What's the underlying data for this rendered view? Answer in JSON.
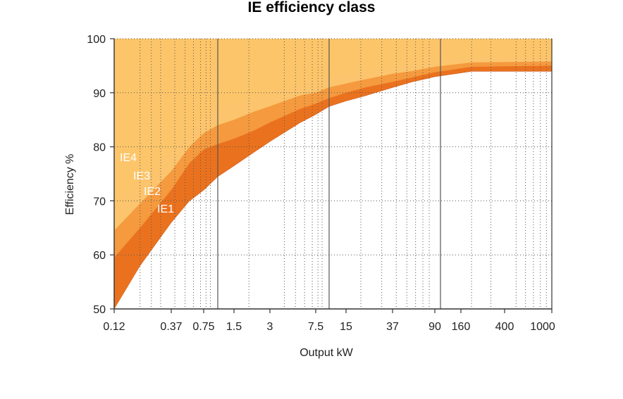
{
  "chart_data": {
    "type": "area",
    "title": "IE efficiency class",
    "xlabel": "Output kW",
    "ylabel": "Efficiency %",
    "x_scale": "log",
    "xlim": [
      0.12,
      1000
    ],
    "ylim": [
      50,
      100
    ],
    "x_tick_labels": [
      "0.12",
      "0.37",
      "0.75",
      "1.5",
      "3",
      "7.5",
      "15",
      "37",
      "90",
      "160",
      "400",
      "1000"
    ],
    "y_ticks": [
      50,
      60,
      70,
      80,
      90,
      100
    ],
    "grid": "dotted",
    "x": [
      0.12,
      0.2,
      0.37,
      0.55,
      0.75,
      1.1,
      1.5,
      2.2,
      3,
      5.5,
      7.5,
      11,
      15,
      22,
      37,
      55,
      90,
      200,
      1000
    ],
    "series": [
      {
        "name": "IE1",
        "color": "#c24d18",
        "values": [
          50.0,
          58.0,
          66.0,
          70.0,
          72.0,
          74.5,
          76.5,
          79.0,
          81.0,
          84.5,
          86.0,
          87.5,
          88.5,
          89.5,
          91.0,
          92.0,
          93.0,
          94.0,
          94.0
        ]
      },
      {
        "name": "IE2",
        "color": "#ea721e",
        "values": [
          59.5,
          65.0,
          72.0,
          77.0,
          79.5,
          80.5,
          81.5,
          83.0,
          84.5,
          87.0,
          88.0,
          89.0,
          90.0,
          91.0,
          92.0,
          92.8,
          93.8,
          94.8,
          95.0
        ]
      },
      {
        "name": "IE3",
        "color": "#f59a3e",
        "values": [
          64.5,
          69.5,
          75.5,
          80.0,
          82.5,
          84.0,
          85.0,
          86.5,
          87.5,
          89.5,
          90.0,
          91.0,
          91.7,
          92.5,
          93.5,
          94.0,
          94.8,
          95.6,
          95.8
        ]
      },
      {
        "name": "IE4",
        "color": "#fcc46c",
        "values": [
          69.5,
          74.0,
          79.0,
          83.0,
          85.5,
          87.0,
          88.0,
          89.0,
          90.0,
          91.5,
          92.5,
          93.0,
          93.5,
          94.0,
          94.8,
          95.3,
          96.0,
          96.5,
          96.5
        ]
      }
    ],
    "background_fill_color": "#fdc56a"
  }
}
